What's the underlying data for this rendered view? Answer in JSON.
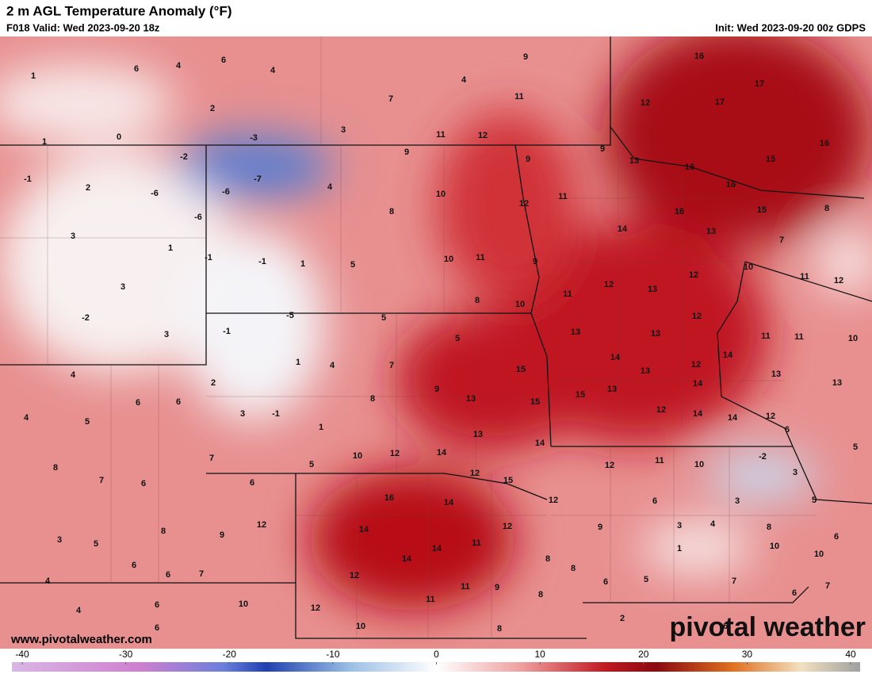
{
  "header": {
    "title": "2 m AGL Temperature Anomaly (°F)",
    "valid": "F018 Valid: Wed 2023-09-20 18z",
    "init": "Init: Wed 2023-09-20 00z GDPS"
  },
  "map": {
    "labels": [
      1,
      6,
      4,
      6,
      4,
      2,
      1,
      0,
      -3,
      3,
      4,
      9,
      7,
      11,
      11,
      12,
      16,
      17,
      17,
      12,
      16,
      15,
      9,
      13,
      16,
      16,
      9,
      9,
      -2,
      -1,
      2,
      -6,
      -6,
      -7,
      -6,
      4,
      10,
      11,
      12,
      16,
      15,
      8,
      8,
      3,
      1,
      -1,
      -1,
      1,
      5,
      10,
      11,
      9,
      14,
      13,
      7,
      10,
      11,
      12,
      3,
      -2,
      3,
      -1,
      -5,
      5,
      8,
      10,
      11,
      12,
      13,
      12,
      12,
      5,
      13,
      13,
      11,
      11,
      10,
      4,
      1,
      4,
      7,
      15,
      14,
      13,
      12,
      14,
      13,
      13,
      4,
      5,
      6,
      6,
      2,
      3,
      -1,
      8,
      9,
      13,
      15,
      15,
      13,
      14,
      12,
      14,
      14,
      12,
      1,
      13,
      14,
      6,
      7,
      5,
      10,
      12,
      14,
      12,
      15,
      12,
      11,
      10,
      -2,
      5,
      3,
      8,
      7,
      6,
      6,
      16,
      14,
      12,
      6,
      3,
      5,
      12,
      9,
      8,
      14,
      12,
      9,
      3,
      4,
      8,
      6,
      3,
      5,
      14,
      11,
      1,
      10,
      10,
      6,
      6,
      7,
      14,
      8,
      8,
      12,
      4,
      11,
      9,
      6,
      5,
      7,
      7,
      8,
      6,
      11,
      10,
      6,
      4,
      12,
      10,
      8,
      2,
      6,
      6
    ]
  },
  "footer": {
    "url": "www.pivotalweather.com",
    "logo": "pivotal weather"
  },
  "colorbar": {
    "lim": [
      -40,
      40
    ],
    "ticks": [
      -40,
      -30,
      -20,
      -10,
      0,
      10,
      20,
      30,
      40
    ]
  }
}
